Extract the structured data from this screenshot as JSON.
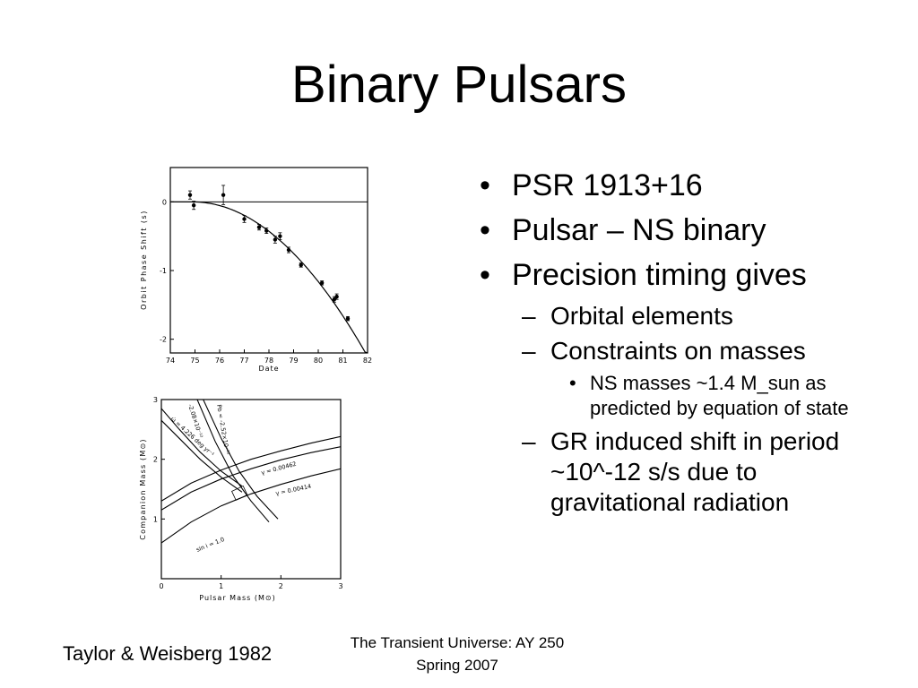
{
  "slide": {
    "title": "Binary Pulsars",
    "bullets": [
      {
        "text": "PSR 1913+16",
        "marker": "•"
      },
      {
        "text": "Pulsar – NS binary",
        "marker": "•"
      },
      {
        "text": "Precision timing gives",
        "marker": "•"
      }
    ],
    "sub_items": [
      {
        "text": "Orbital elements",
        "marker": "–"
      },
      {
        "text": "Constraints on masses",
        "marker": "–"
      }
    ],
    "sub_sub_items": [
      {
        "text": "NS masses ~1.4 M_sun as predicted by equation of state",
        "marker": "•"
      }
    ],
    "last_item": {
      "text": "GR induced shift in period ~10^-12 s/s due to gravitational radiation",
      "marker": "–"
    },
    "credit": "Taylor & Weisberg 1982",
    "footer": {
      "line1": "The Transient Universe:  AY 250",
      "line2": "Spring 2007"
    }
  },
  "chart_data": [
    {
      "type": "scatter",
      "xlabel": "Date",
      "ylabel": "Orbit Phase Shift (s)",
      "xlim": [
        74,
        82
      ],
      "ylim": [
        -2.2,
        0.5
      ],
      "x_ticks": [
        "74",
        "75",
        "76",
        "77",
        "78",
        "79",
        "80",
        "81",
        "82"
      ],
      "y_ticks": [
        "0",
        "-1",
        "-2"
      ],
      "points": [
        {
          "x": 74.8,
          "y": 0.1,
          "err": 0.06
        },
        {
          "x": 74.95,
          "y": -0.05,
          "err": 0.06
        },
        {
          "x": 76.15,
          "y": 0.1,
          "err": 0.14
        },
        {
          "x": 77.0,
          "y": -0.25,
          "err": 0.05
        },
        {
          "x": 77.6,
          "y": -0.37,
          "err": 0.04
        },
        {
          "x": 77.9,
          "y": -0.42,
          "err": 0.04
        },
        {
          "x": 78.25,
          "y": -0.55,
          "err": 0.05
        },
        {
          "x": 78.45,
          "y": -0.5,
          "err": 0.05
        },
        {
          "x": 78.8,
          "y": -0.7,
          "err": 0.04
        },
        {
          "x": 79.3,
          "y": -0.92,
          "err": 0.03
        },
        {
          "x": 80.15,
          "y": -1.18,
          "err": 0.03
        },
        {
          "x": 80.65,
          "y": -1.42,
          "err": 0.04
        },
        {
          "x": 80.75,
          "y": -1.38,
          "err": 0.04
        },
        {
          "x": 81.2,
          "y": -1.7,
          "err": 0.03
        }
      ],
      "curve": {
        "x0": 74.9,
        "y_at_82": -2.25
      }
    },
    {
      "type": "line",
      "xlabel": "Pulsar Mass (M⊙)",
      "ylabel": "Companion Mass (M⊙)",
      "xlim": [
        0,
        3
      ],
      "ylim": [
        0,
        3
      ],
      "x_ticks": [
        "0",
        "1",
        "2",
        "3"
      ],
      "y_ticks": [
        "1",
        "2",
        "3"
      ],
      "series": [
        {
          "name": "γ = 0.00462",
          "points": [
            [
              0,
              1.3
            ],
            [
              0.5,
              1.6
            ],
            [
              1.0,
              1.82
            ],
            [
              1.5,
              2.0
            ],
            [
              2.0,
              2.14
            ],
            [
              2.5,
              2.27
            ],
            [
              3.0,
              2.38
            ]
          ]
        },
        {
          "name": "γ = 0.00414",
          "points": [
            [
              0,
              1.15
            ],
            [
              0.5,
              1.45
            ],
            [
              1.0,
              1.67
            ],
            [
              1.5,
              1.84
            ],
            [
              2.0,
              1.99
            ],
            [
              2.5,
              2.11
            ],
            [
              3.0,
              2.21
            ]
          ]
        },
        {
          "name": "sin i = 1.0",
          "points": [
            [
              0,
              0.6
            ],
            [
              0.5,
              0.95
            ],
            [
              1.0,
              1.22
            ],
            [
              1.5,
              1.42
            ],
            [
              2.0,
              1.58
            ],
            [
              2.5,
              1.72
            ],
            [
              3.0,
              1.84
            ]
          ]
        },
        {
          "name": "Ṗb = -2.52×10⁻¹²",
          "points": [
            [
              0.6,
              3.0
            ],
            [
              0.9,
              2.3
            ],
            [
              1.2,
              1.72
            ],
            [
              1.5,
              1.3
            ],
            [
              1.8,
              0.95
            ]
          ]
        },
        {
          "name": "Ṗb = -2.08×10⁻¹²",
          "points": [
            [
              0.7,
              3.0
            ],
            [
              1.0,
              2.35
            ],
            [
              1.3,
              1.8
            ],
            [
              1.6,
              1.38
            ],
            [
              1.95,
              1.0
            ]
          ]
        },
        {
          "name": "ω̇ = 4.226 deg yr⁻¹",
          "points": [
            [
              0.0,
              2.85
            ],
            [
              0.3,
              2.5
            ],
            [
              0.65,
              2.12
            ],
            [
              1.0,
              1.8
            ],
            [
              1.35,
              1.55
            ]
          ]
        },
        {
          "name": "ω̇ (lower)",
          "points": [
            [
              0.0,
              2.65
            ],
            [
              0.3,
              2.35
            ],
            [
              0.65,
              2.0
            ],
            [
              1.0,
              1.7
            ],
            [
              1.35,
              1.45
            ]
          ]
        }
      ],
      "annotations": [
        {
          "text": "Ṗb = -2.52×10⁻¹²"
        },
        {
          "text": "-2.08×10⁻¹²"
        },
        {
          "text": "ω̇ = 4.226 deg yr⁻¹"
        },
        {
          "text": "γ = 0.00462"
        },
        {
          "text": "γ = 0.00414"
        },
        {
          "text": "sin i = 1.0"
        }
      ]
    }
  ]
}
